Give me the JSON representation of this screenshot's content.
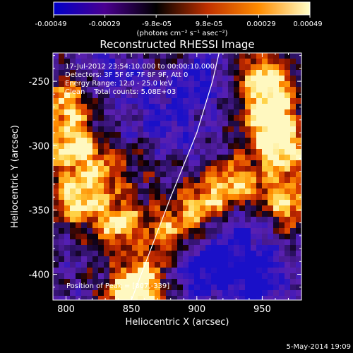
{
  "chart_data": {
    "type": "heatmap",
    "title": "Reconstructed RHESSI Image",
    "xlabel": "Heliocentric X (arcsec)",
    "ylabel": "Heliocentric Y (arcsec)",
    "xlim": [
      790,
      980
    ],
    "ylim": [
      -420,
      -228
    ],
    "x_ticks": [
      800,
      850,
      900,
      950
    ],
    "y_ticks": [
      -250,
      -300,
      -350,
      -400
    ],
    "grid": false,
    "colorbar": {
      "tick_labels": [
        "-0.00049",
        "-0.00029",
        "-9.8e-05",
        "9.8e-05",
        "0.00029",
        "0.00049"
      ],
      "range": [
        -0.00049,
        0.00049
      ],
      "units_label": "(photons cm⁻² s⁻¹ asec⁻²)",
      "colors": [
        "#0000c8",
        "#4a0090",
        "#000000",
        "#c03000",
        "#ff8c00",
        "#ffffc8"
      ]
    },
    "annotations": [
      "17-Jul-2012 23:54:10.000 to 00:00:10.000",
      "Detectors: 3F 5F 6F 7F 8F 9F, Att 0",
      "Energy Range: 12.0 - 25.0 keV",
      "Clean    Total counts: 5.08E+03"
    ],
    "peak_label": "Position of Peak = [807,-339]",
    "limb_curve": [
      [
        850,
        -420
      ],
      [
        880,
        -340
      ],
      [
        900,
        -290
      ],
      [
        912,
        -250
      ],
      [
        917,
        -228
      ]
    ],
    "hot_spots": [
      {
        "x": 800,
        "y": -265,
        "w": 0.9
      },
      {
        "x": 805,
        "y": -300,
        "w": 1.0
      },
      {
        "x": 808,
        "y": -340,
        "w": 1.0
      },
      {
        "x": 830,
        "y": -320,
        "w": 0.6
      },
      {
        "x": 840,
        "y": -360,
        "w": 0.9
      },
      {
        "x": 850,
        "y": -415,
        "w": 1.0
      },
      {
        "x": 860,
        "y": -400,
        "w": 0.6
      },
      {
        "x": 880,
        "y": -365,
        "w": 0.7
      },
      {
        "x": 905,
        "y": -345,
        "w": 0.8
      },
      {
        "x": 930,
        "y": -330,
        "w": 0.9
      },
      {
        "x": 955,
        "y": -280,
        "w": 1.0
      },
      {
        "x": 965,
        "y": -305,
        "w": 1.0
      },
      {
        "x": 970,
        "y": -345,
        "w": 0.9
      },
      {
        "x": 945,
        "y": -245,
        "w": 0.6
      },
      {
        "x": 960,
        "y": -255,
        "w": 0.7
      },
      {
        "x": 870,
        "y": -310,
        "w": 0.4
      },
      {
        "x": 850,
        "y": -270,
        "w": 0.3
      },
      {
        "x": 880,
        "y": -230,
        "w": 0.3
      }
    ],
    "cold_spots": [
      {
        "x": 900,
        "y": -250,
        "w": 0.8
      },
      {
        "x": 860,
        "y": -270,
        "w": 0.7
      },
      {
        "x": 905,
        "y": -395,
        "w": 0.9
      },
      {
        "x": 945,
        "y": -400,
        "w": 1.0
      },
      {
        "x": 930,
        "y": -360,
        "w": 0.6
      },
      {
        "x": 880,
        "y": -300,
        "w": 0.6
      },
      {
        "x": 835,
        "y": -245,
        "w": 0.5
      }
    ]
  },
  "footer": {
    "date": "5-May-2014 19:09"
  }
}
